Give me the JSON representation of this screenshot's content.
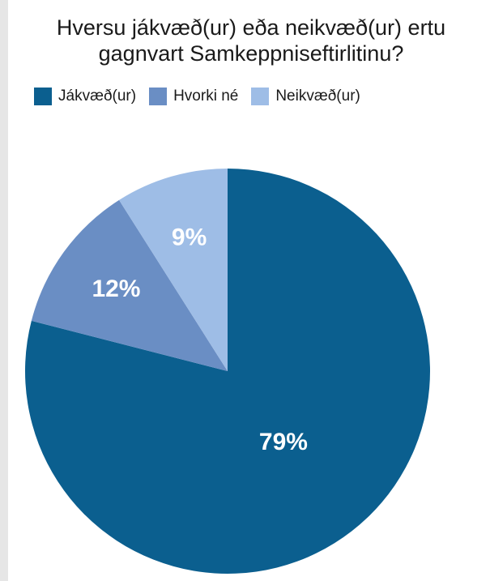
{
  "chart_data": {
    "type": "pie",
    "title": "Hversu jákvæð(ur) eða neikvæð(ur) ertu gagnvart Samkeppniseftirlitinu?",
    "categories": [
      "Jákvæð(ur)",
      "Hvorki né",
      "Neikvæð(ur)"
    ],
    "values": [
      79,
      12,
      9
    ],
    "value_labels": [
      "79%",
      "12%",
      "9%"
    ],
    "colors": [
      "#0b5f8f",
      "#6a8ec4",
      "#9ebde6"
    ]
  }
}
